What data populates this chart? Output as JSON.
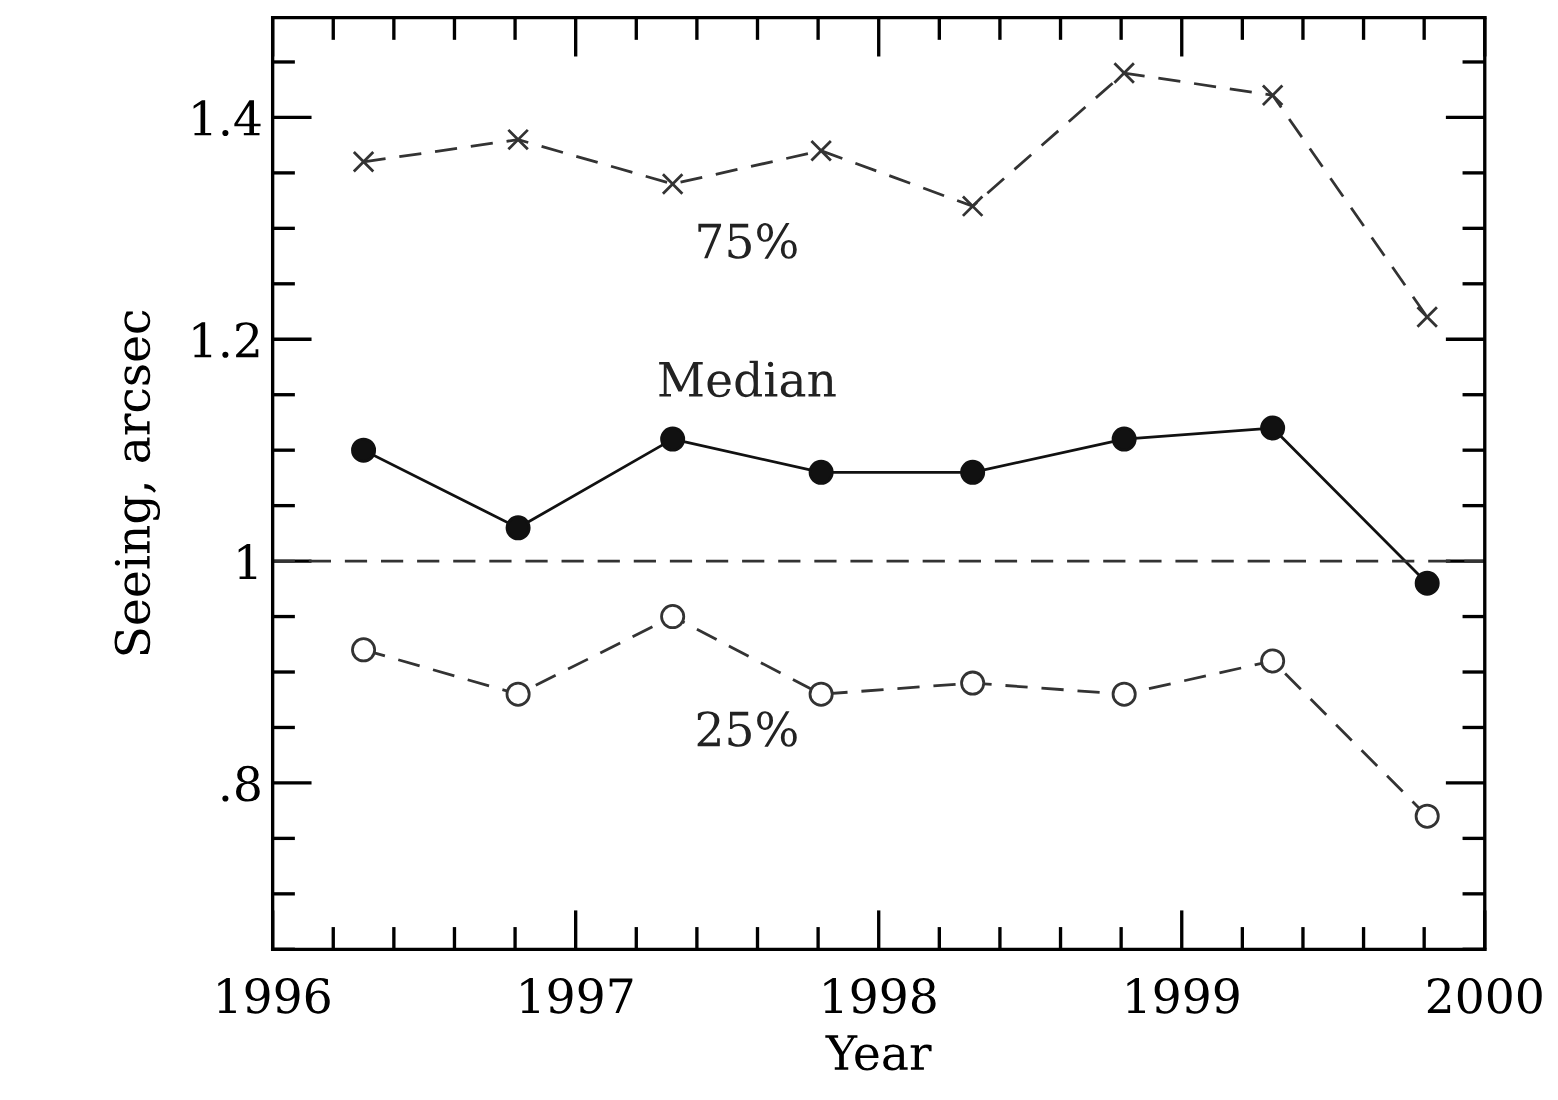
{
  "chart_data": {
    "type": "line",
    "xlabel": "Year",
    "ylabel": "Seeing, arcsec",
    "xlim": [
      1996,
      2000
    ],
    "xticks": [
      1996,
      1997,
      1998,
      1999,
      2000
    ],
    "ylim": [
      0.65,
      1.49
    ],
    "yticks": [
      {
        "value": 0.8,
        "label": ".8"
      },
      1,
      1.2,
      1.4
    ],
    "grid": false,
    "ref_lines": [
      {
        "axis": "y",
        "value": 1,
        "color": "#333333",
        "line_style": "dashed"
      }
    ],
    "series": [
      {
        "name": "75%",
        "color": "#333333",
        "marker": "cross",
        "line_style": "dashed",
        "x": [
          1996.3,
          1996.81,
          1997.32,
          1997.81,
          1998.31,
          1998.81,
          1999.3,
          1999.81
        ],
        "values": [
          1.36,
          1.38,
          1.34,
          1.37,
          1.32,
          1.44,
          1.42,
          1.22
        ]
      },
      {
        "name": "Median",
        "color": "#111111",
        "marker": "circle",
        "line_style": "solid",
        "x": [
          1996.3,
          1996.81,
          1997.32,
          1997.81,
          1998.31,
          1998.81,
          1999.3,
          1999.81
        ],
        "values": [
          1.1,
          1.03,
          1.11,
          1.08,
          1.08,
          1.11,
          1.12,
          0.98
        ]
      },
      {
        "name": "25%",
        "color": "#333333",
        "marker": "circle",
        "line_style": "dashed",
        "x": [
          1996.3,
          1996.81,
          1997.32,
          1997.81,
          1998.31,
          1998.81,
          1999.3,
          1999.81
        ],
        "values": [
          0.92,
          0.88,
          0.95,
          0.88,
          0.89,
          0.88,
          0.91,
          0.77
        ]
      }
    ]
  }
}
